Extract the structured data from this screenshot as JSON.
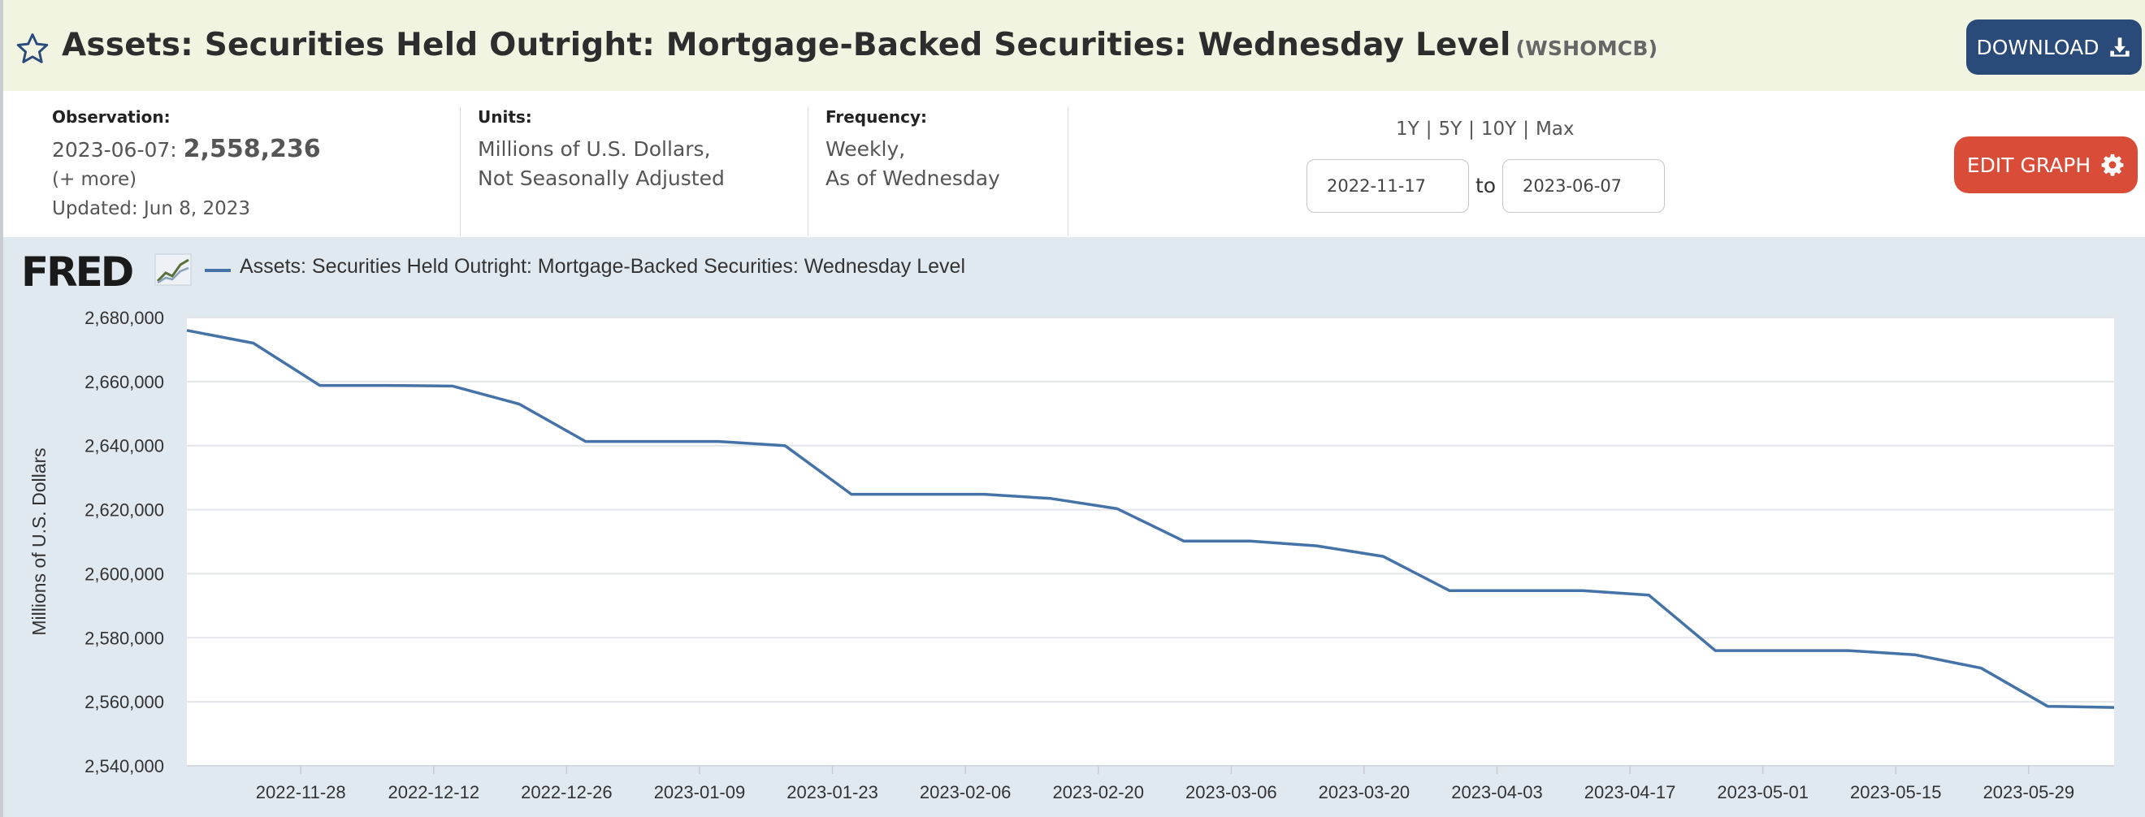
{
  "header": {
    "title": "Assets: Securities Held Outright: Mortgage-Backed Securities: Wednesday Level",
    "series_id": "(WSHOMCB)",
    "download_label": "DOWNLOAD",
    "icons": {
      "star": "star-icon",
      "download": "download-icon"
    }
  },
  "info": {
    "observation_label": "Observation:",
    "observation_date": "2023-06-07:",
    "observation_value": "2,558,236",
    "more_label": "(+ more)",
    "updated": "Updated: Jun 8, 2023",
    "units_label": "Units:",
    "units_line1": "Millions of U.S. Dollars,",
    "units_line2": "Not Seasonally Adjusted",
    "frequency_label": "Frequency:",
    "frequency_line1": "Weekly,",
    "frequency_line2": "As of Wednesday"
  },
  "controls": {
    "ranges": [
      "1Y",
      "5Y",
      "10Y",
      "Max"
    ],
    "start_date": "2022-11-17",
    "to_label": "to",
    "end_date": "2023-06-07",
    "edit_label": "EDIT GRAPH",
    "icons": {
      "edit": "gear-icon"
    }
  },
  "chart_data": {
    "type": "line",
    "brand": "FRED",
    "legend": "Assets: Securities Held Outright: Mortgage-Backed Securities: Wednesday Level",
    "ylabel": "Millions of U.S. Dollars",
    "ylim": [
      2540000,
      2680000
    ],
    "yticks": [
      2540000,
      2560000,
      2580000,
      2600000,
      2620000,
      2640000,
      2660000,
      2680000
    ],
    "ytick_labels": [
      "2,540,000",
      "2,560,000",
      "2,580,000",
      "2,600,000",
      "2,620,000",
      "2,640,000",
      "2,660,000",
      "2,680,000"
    ],
    "xlim": [
      "2022-11-16",
      "2023-06-07"
    ],
    "xtick_labels": [
      "2022-11-28",
      "2022-12-12",
      "2022-12-26",
      "2023-01-09",
      "2023-01-23",
      "2023-02-06",
      "2023-02-20",
      "2023-03-06",
      "2023-03-20",
      "2023-04-03",
      "2023-04-17",
      "2023-05-01",
      "2023-05-15",
      "2023-05-29"
    ],
    "grid": true,
    "color": "#4572a7",
    "series": [
      {
        "x": [
          "2022-11-16",
          "2022-11-23",
          "2022-11-30",
          "2022-12-07",
          "2022-12-14",
          "2022-12-21",
          "2022-12-28",
          "2023-01-04",
          "2023-01-11",
          "2023-01-18",
          "2023-01-25",
          "2023-02-01",
          "2023-02-08",
          "2023-02-15",
          "2023-02-22",
          "2023-03-01",
          "2023-03-08",
          "2023-03-15",
          "2023-03-22",
          "2023-03-29",
          "2023-04-05",
          "2023-04-12",
          "2023-04-19",
          "2023-04-26",
          "2023-05-03",
          "2023-05-10",
          "2023-05-17",
          "2023-05-24",
          "2023-05-31",
          "2023-06-07"
        ],
        "values": [
          2676000,
          2672000,
          2658800,
          2658800,
          2658600,
          2653000,
          2641300,
          2641300,
          2641300,
          2640000,
          2624800,
          2624800,
          2624800,
          2623500,
          2620300,
          2610200,
          2610200,
          2608700,
          2605400,
          2594700,
          2594700,
          2594700,
          2593300,
          2576000,
          2576000,
          2576000,
          2574700,
          2570500,
          2558600,
          2558236
        ]
      }
    ]
  }
}
